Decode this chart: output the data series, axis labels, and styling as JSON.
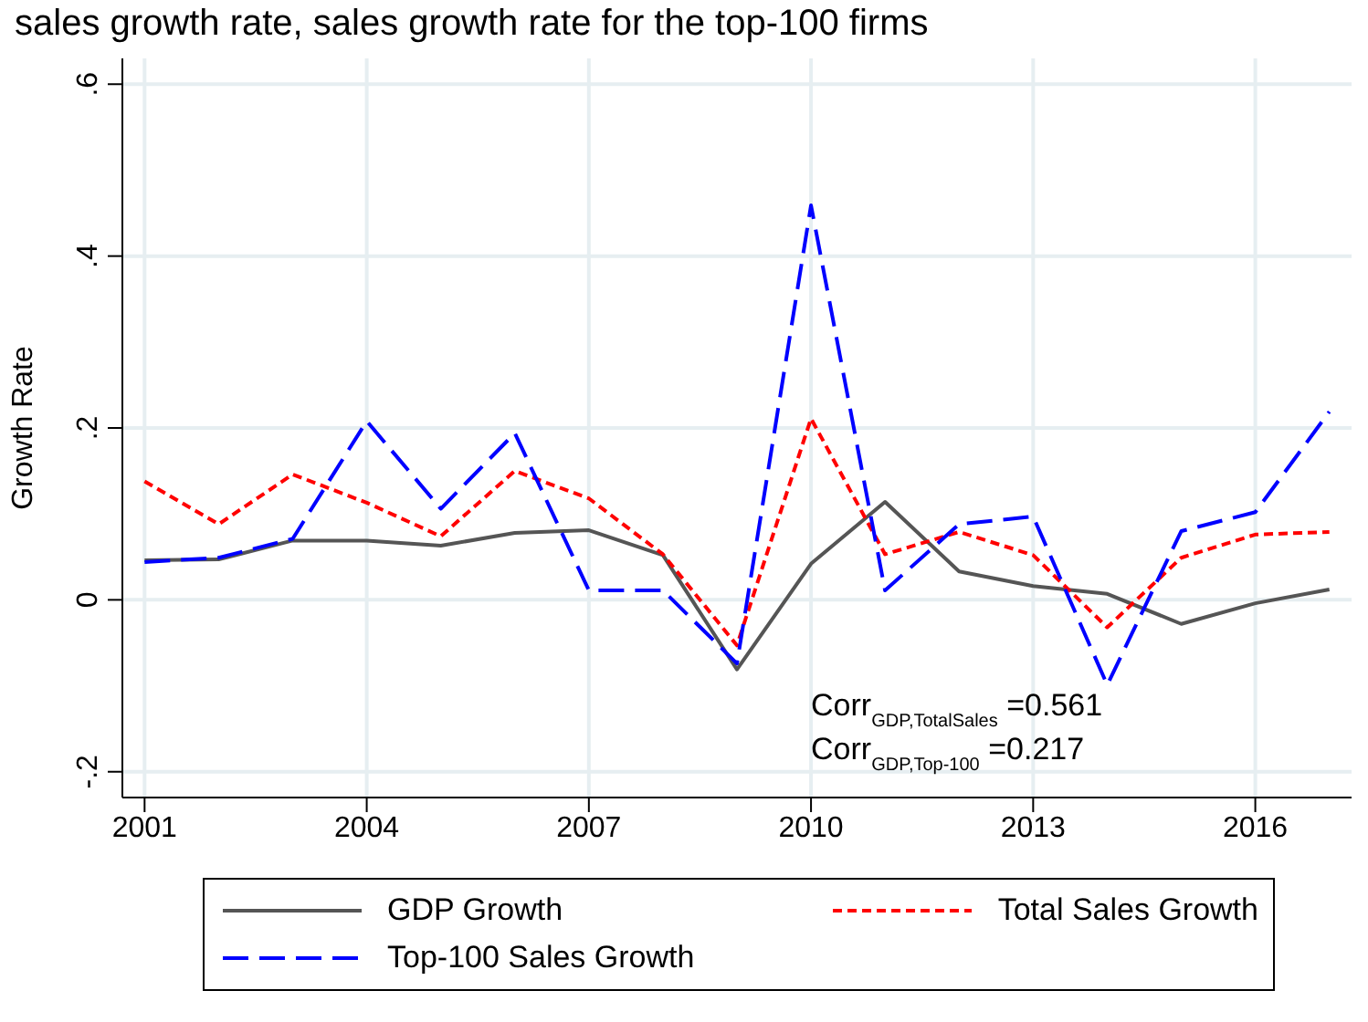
{
  "chart_data": {
    "type": "line",
    "title": "sales growth rate, sales growth rate for the top-100 firms",
    "ylabel": "Growth Rate",
    "x": [
      2001,
      2002,
      2003,
      2004,
      2005,
      2006,
      2007,
      2008,
      2009,
      2010,
      2011,
      2012,
      2013,
      2014,
      2015,
      2016,
      2017
    ],
    "series": [
      {
        "name": "GDP Growth",
        "color": "#555555",
        "line_style": "solid",
        "values": [
          0.046,
          0.047,
          0.069,
          0.069,
          0.063,
          0.078,
          0.081,
          0.052,
          -0.081,
          0.042,
          0.114,
          0.033,
          0.016,
          0.007,
          -0.028,
          -0.004,
          0.012
        ]
      },
      {
        "name": "Total Sales Growth",
        "color": "#ff0000",
        "line_style": "dashed",
        "values": [
          0.138,
          0.088,
          0.146,
          0.113,
          0.074,
          0.15,
          0.118,
          0.053,
          -0.053,
          0.211,
          0.053,
          0.079,
          0.052,
          -0.032,
          0.049,
          0.076,
          0.079
        ]
      },
      {
        "name": "Top-100 Sales Growth",
        "color": "#0000ff",
        "line_style": "dashed",
        "values": [
          0.044,
          0.049,
          0.071,
          0.208,
          0.106,
          0.194,
          0.011,
          0.011,
          -0.074,
          0.459,
          0.011,
          0.088,
          0.097,
          -0.099,
          0.08,
          0.102,
          0.219
        ]
      }
    ],
    "xlim": [
      2000.7,
      2017.3
    ],
    "xticks": [
      2001,
      2004,
      2007,
      2010,
      2013,
      2016
    ],
    "ylim": [
      -0.23,
      0.63
    ],
    "yticks": [
      {
        "value": -0.2,
        "label": "-.2"
      },
      {
        "value": 0,
        "label": "0"
      },
      {
        "value": 0.2,
        "label": ".2"
      },
      {
        "value": 0.4,
        "label": ".4"
      },
      {
        "value": 0.6,
        "label": ".6"
      }
    ],
    "grid": true,
    "legend": "bottom",
    "annotations": [
      "Corr$_{GDP,TotalSales}$ =0.561",
      "Corr$_{GDP,Top-100}$ =0.217"
    ]
  }
}
